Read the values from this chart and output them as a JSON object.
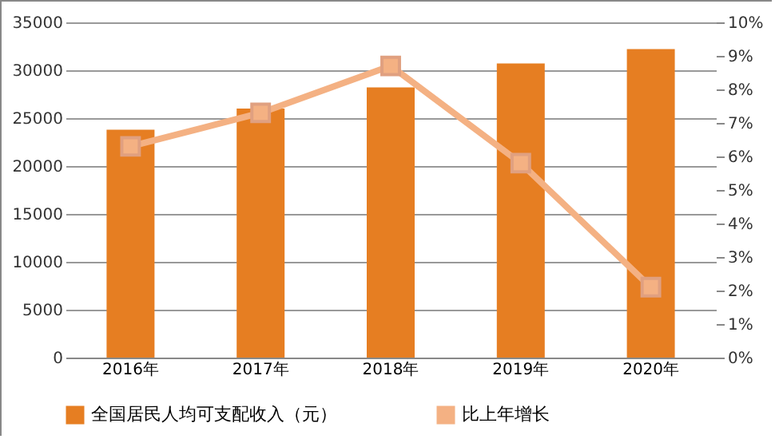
{
  "chart_data": {
    "type": "bar",
    "categories": [
      "2016年",
      "2017年",
      "2018年",
      "2019年",
      "2020年"
    ],
    "series": [
      {
        "name": "全国居民人均可支配收入（元）",
        "color": "#e67e22",
        "values": [
          23800,
          26000,
          28200,
          30700,
          32200
        ]
      },
      {
        "name": "比上年增长",
        "type": "line",
        "axis": "y2",
        "color": "#f4b183",
        "marker": "square",
        "values": [
          6.3,
          7.3,
          8.7,
          5.8,
          2.1
        ]
      }
    ],
    "ylim": [
      0,
      35000
    ],
    "yticks": [
      0,
      5000,
      10000,
      15000,
      20000,
      25000,
      30000,
      35000
    ],
    "y2lim": [
      0,
      10
    ],
    "y2ticks": [
      {
        "value": 0,
        "label": "0%"
      },
      {
        "value": 1,
        "label": "1%"
      },
      {
        "value": 2,
        "label": "2%"
      },
      {
        "value": 3,
        "label": "3%"
      },
      {
        "value": 4,
        "label": "4%"
      },
      {
        "value": 5,
        "label": "5%"
      },
      {
        "value": 6,
        "label": "6%"
      },
      {
        "value": 7,
        "label": "7%"
      },
      {
        "value": 8,
        "label": "8%"
      },
      {
        "value": 9,
        "label": "9%"
      },
      {
        "value": 10,
        "label": "10%"
      }
    ],
    "grid": "y",
    "legend": "bottom"
  }
}
